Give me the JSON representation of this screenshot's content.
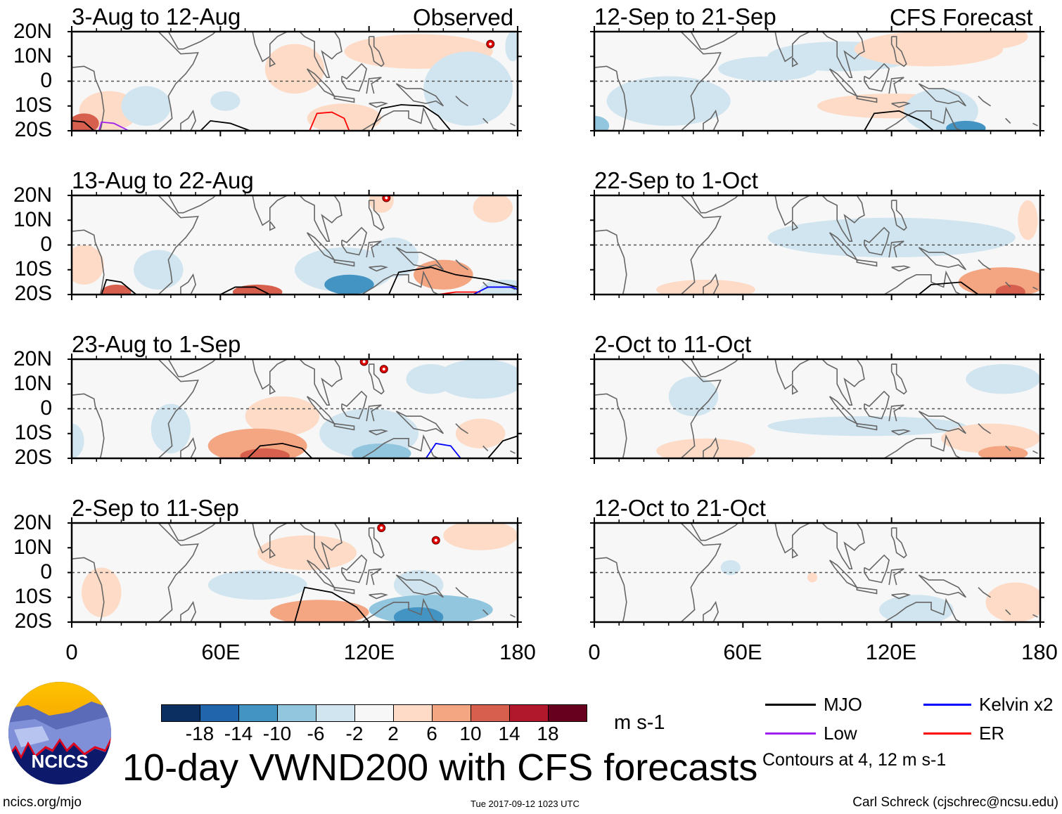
{
  "title": "10-day VWND200 with CFS forecasts",
  "left_header": "Observed",
  "right_header": "CFS Forecast",
  "y_ticks": [
    "20N",
    "10N",
    "0",
    "10S",
    "20S"
  ],
  "x_ticks": [
    "0",
    "60E",
    "120E",
    "180"
  ],
  "colorbar": {
    "levels": [
      "-18",
      "-14",
      "-10",
      "-6",
      "-2",
      "2",
      "6",
      "10",
      "14",
      "18"
    ],
    "colors": [
      "#0b2f60",
      "#2166ac",
      "#4393c3",
      "#92c5de",
      "#d1e5f0",
      "#f7f7f7",
      "#fddbc7",
      "#f4a582",
      "#d6604d",
      "#b2182b",
      "#67001f"
    ],
    "units": "m s-1"
  },
  "legend": {
    "items": [
      {
        "label": "MJO",
        "color": "#000000"
      },
      {
        "label": "Kelvin x2",
        "color": "#0000ff"
      },
      {
        "label": "Low",
        "color": "#a020f0"
      },
      {
        "label": "ER",
        "color": "#ff0000"
      }
    ],
    "note": "Contours at 4, 12 m s-1"
  },
  "logo_text": "NCICS",
  "footer": {
    "url": "ncics.org/mjo",
    "timestamp": "Tue 2017-09-12 1023 UTC",
    "author": "Carl Schreck (cjschrec@ncsu.edu)"
  },
  "chart_data": {
    "type": "heatmap",
    "lon_range": [
      0,
      180
    ],
    "lat_range": [
      -20,
      20
    ],
    "panels": [
      {
        "title": "3-Aug to 12-Aug",
        "kind": "Observed",
        "features": [
          [
            15,
            -12,
            12,
            8,
            4
          ],
          [
            5,
            -17,
            6,
            4,
            12
          ],
          [
            90,
            5,
            12,
            10,
            4
          ],
          [
            140,
            12,
            30,
            7,
            4
          ],
          [
            110,
            -15,
            15,
            6,
            4
          ],
          [
            160,
            -3,
            18,
            15,
            -4
          ],
          [
            30,
            -10,
            10,
            8,
            -4
          ],
          [
            62,
            -8,
            6,
            4,
            -4
          ],
          [
            178,
            14,
            3,
            6,
            -6
          ]
        ],
        "contours": [
          {
            "type": "MJO",
            "pts": [
              [
                0,
                -16
              ],
              [
                5,
                -16.5
              ],
              [
                9,
                -20
              ]
            ]
          },
          {
            "type": "Low",
            "pts": [
              [
                11,
                -20
              ],
              [
                12,
                -16.5
              ],
              [
                17,
                -17
              ],
              [
                23,
                -20
              ]
            ]
          },
          {
            "type": "MJO",
            "pts": [
              [
                52,
                -20
              ],
              [
                56,
                -16
              ],
              [
                64,
                -17
              ],
              [
                72,
                -20
              ]
            ]
          },
          {
            "type": "ER",
            "pts": [
              [
                96,
                -20
              ],
              [
                99,
                -13
              ],
              [
                105,
                -12.5
              ],
              [
                110,
                -15
              ],
              [
                112,
                -20
              ]
            ]
          },
          {
            "type": "MJO",
            "pts": [
              [
                121,
                -20
              ],
              [
                125,
                -11
              ],
              [
                133,
                -9.5
              ],
              [
                142,
                -10
              ],
              [
                148,
                -14
              ],
              [
                153,
                -20
              ]
            ]
          }
        ],
        "cyclones": [
          [
            169,
            15
          ]
        ]
      },
      {
        "title": "13-Aug to 22-Aug",
        "kind": "Observed",
        "features": [
          [
            5,
            -8,
            8,
            8,
            4
          ],
          [
            18,
            -19,
            6,
            3,
            10
          ],
          [
            75,
            -19,
            10,
            3,
            10
          ],
          [
            150,
            -12,
            12,
            6,
            6
          ],
          [
            125,
            18,
            5,
            5,
            4
          ],
          [
            170,
            15,
            8,
            6,
            4
          ],
          [
            35,
            -10,
            10,
            8,
            -4
          ],
          [
            110,
            -10,
            20,
            9,
            -6
          ],
          [
            112,
            -16,
            10,
            4,
            -14
          ],
          [
            130,
            -5,
            10,
            8,
            -4
          ],
          [
            175,
            -18,
            10,
            4,
            -4
          ]
        ],
        "contours": [
          {
            "type": "MJO",
            "pts": [
              [
                12,
                -20
              ],
              [
                14,
                -14
              ],
              [
                20,
                -15
              ],
              [
                26,
                -20
              ]
            ]
          },
          {
            "type": "MJO",
            "pts": [
              [
                60,
                -20
              ],
              [
                66,
                -17
              ],
              [
                74,
                -17
              ],
              [
                80,
                -20
              ]
            ]
          },
          {
            "type": "MJO",
            "pts": [
              [
                128,
                -20
              ],
              [
                132,
                -11
              ],
              [
                145,
                -9
              ],
              [
                155,
                -12
              ],
              [
                168,
                -14
              ],
              [
                180,
                -17
              ]
            ]
          },
          {
            "type": "ER",
            "pts": [
              [
                148,
                -20
              ],
              [
                155,
                -19
              ],
              [
                165,
                -19
              ]
            ]
          },
          {
            "type": "Kelvin",
            "pts": [
              [
                162,
                -20
              ],
              [
                168,
                -17
              ],
              [
                178,
                -17
              ],
              [
                180,
                -18
              ]
            ]
          }
        ],
        "cyclones": [
          [
            127,
            19
          ]
        ]
      },
      {
        "title": "23-Aug to 1-Sep",
        "kind": "Observed",
        "features": [
          [
            0,
            -13,
            5,
            7,
            -6
          ],
          [
            40,
            -8,
            8,
            10,
            -4
          ],
          [
            120,
            -10,
            20,
            10,
            -6
          ],
          [
            125,
            -18,
            12,
            4,
            -10
          ],
          [
            165,
            12,
            18,
            8,
            -6
          ],
          [
            145,
            12,
            10,
            6,
            -4
          ],
          [
            75,
            -15,
            20,
            7,
            6
          ],
          [
            78,
            -19,
            10,
            3,
            12
          ],
          [
            85,
            -3,
            15,
            8,
            4
          ],
          [
            165,
            -10,
            10,
            6,
            4
          ]
        ],
        "contours": [
          {
            "type": "MJO",
            "pts": [
              [
                71,
                -20
              ],
              [
                76,
                -15
              ],
              [
                85,
                -14
              ],
              [
                93,
                -16
              ],
              [
                97,
                -20
              ]
            ]
          },
          {
            "type": "Kelvin",
            "pts": [
              [
                143,
                -20
              ],
              [
                147,
                -14
              ],
              [
                153,
                -15
              ],
              [
                157,
                -20
              ]
            ]
          },
          {
            "type": "MJO",
            "pts": [
              [
                168,
                -20
              ],
              [
                174,
                -13
              ],
              [
                180,
                -11
              ]
            ]
          }
        ],
        "cyclones": [
          [
            118,
            19
          ],
          [
            126,
            16
          ]
        ]
      },
      {
        "title": "2-Sep to 11-Sep",
        "kind": "Observed",
        "features": [
          [
            95,
            8,
            20,
            7,
            4
          ],
          [
            100,
            -16,
            20,
            5,
            6
          ],
          [
            12,
            -8,
            8,
            10,
            4
          ],
          [
            165,
            15,
            15,
            6,
            4
          ],
          [
            75,
            -5,
            20,
            6,
            -4
          ],
          [
            145,
            -15,
            25,
            6,
            -10
          ],
          [
            140,
            -18,
            10,
            4,
            -14
          ],
          [
            140,
            -5,
            10,
            6,
            -4
          ]
        ],
        "contours": [
          {
            "type": "MJO",
            "pts": [
              [
                90,
                -20
              ],
              [
                94,
                -6
              ],
              [
                105,
                -8
              ],
              [
                115,
                -14
              ],
              [
                120,
                -20
              ]
            ]
          }
        ],
        "cyclones": [
          [
            125,
            18
          ],
          [
            147,
            13
          ]
        ]
      },
      {
        "title": "12-Sep to 21-Sep",
        "kind": "CFS Forecast",
        "features": [
          [
            30,
            -8,
            25,
            10,
            -4
          ],
          [
            0,
            -18,
            6,
            4,
            -10
          ],
          [
            140,
            -12,
            15,
            9,
            -6
          ],
          [
            150,
            -19,
            8,
            3,
            -14
          ],
          [
            70,
            5,
            20,
            5,
            -4
          ],
          [
            100,
            10,
            30,
            6,
            -4
          ],
          [
            120,
            -10,
            30,
            5,
            4
          ],
          [
            135,
            13,
            30,
            7,
            4
          ],
          [
            160,
            18,
            15,
            5,
            4
          ]
        ],
        "contours": [
          {
            "type": "MJO",
            "pts": [
              [
                109,
                -20
              ],
              [
                113,
                -13
              ],
              [
                123,
                -12
              ],
              [
                132,
                -16
              ],
              [
                137,
                -20
              ]
            ]
          }
        ],
        "cyclones": []
      },
      {
        "title": "22-Sep to 1-Oct",
        "kind": "CFS Forecast",
        "features": [
          [
            120,
            3,
            50,
            8,
            -4
          ],
          [
            45,
            -18,
            20,
            4,
            4
          ],
          [
            165,
            -15,
            18,
            6,
            6
          ],
          [
            168,
            -19,
            6,
            3,
            12
          ],
          [
            175,
            10,
            4,
            8,
            4
          ]
        ],
        "contours": [
          {
            "type": "MJO",
            "pts": [
              [
                131,
                -20
              ],
              [
                136,
                -16
              ],
              [
                148,
                -15
              ],
              [
                155,
                -20
              ]
            ]
          }
        ],
        "cyclones": []
      },
      {
        "title": "2-Oct to 11-Oct",
        "kind": "CFS Forecast",
        "features": [
          [
            110,
            -7,
            40,
            4,
            -4
          ],
          [
            165,
            12,
            15,
            6,
            -4
          ],
          [
            40,
            5,
            10,
            8,
            -4
          ],
          [
            45,
            -17,
            20,
            5,
            4
          ],
          [
            160,
            -12,
            20,
            6,
            4
          ],
          [
            165,
            -18,
            10,
            3,
            6
          ]
        ],
        "contours": [],
        "cyclones": []
      },
      {
        "title": "12-Oct to 21-Oct",
        "kind": "CFS Forecast",
        "features": [
          [
            170,
            -12,
            12,
            8,
            4
          ],
          [
            130,
            -15,
            15,
            6,
            -4
          ],
          [
            55,
            2,
            4,
            3,
            -4
          ],
          [
            88,
            -2,
            2,
            2,
            4
          ]
        ],
        "contours": [],
        "cyclones": []
      }
    ]
  }
}
